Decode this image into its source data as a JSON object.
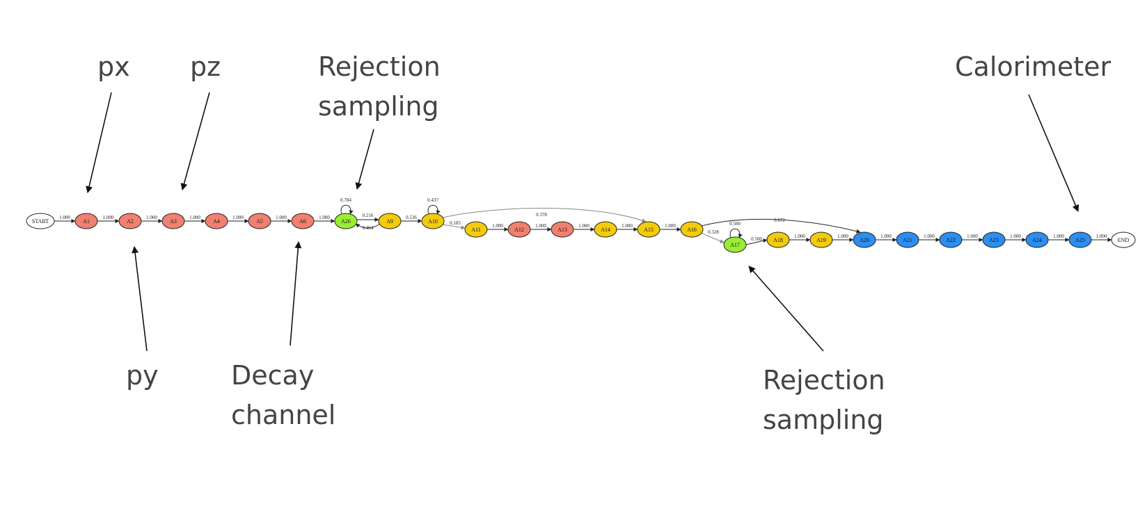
{
  "annotations": {
    "px": "px",
    "pz": "pz",
    "py": "py",
    "rejection_1": "Rejection\nsampling",
    "decay_channel": "Decay\nchannel",
    "calorimeter": "Calorimeter",
    "rejection_2": "Rejection\nsampling"
  },
  "colors": {
    "red": "#f08070",
    "yellow": "#f2cc0c",
    "green": "#99ee33",
    "blue": "#2b8ef0",
    "white": "#ffffff",
    "edge": "#222222",
    "edge_gray": "#888888",
    "label": "#444444"
  },
  "graph": {
    "nodes": [
      {
        "id": "START",
        "label": "START",
        "color": "white"
      },
      {
        "id": "A1",
        "label": "A1",
        "color": "red"
      },
      {
        "id": "A2",
        "label": "A2",
        "color": "red"
      },
      {
        "id": "A3",
        "label": "A3",
        "color": "red"
      },
      {
        "id": "A4",
        "label": "A4",
        "color": "red"
      },
      {
        "id": "A5",
        "label": "A5",
        "color": "red"
      },
      {
        "id": "A6",
        "label": "A6",
        "color": "red"
      },
      {
        "id": "A26",
        "label": "A26",
        "color": "green"
      },
      {
        "id": "A9",
        "label": "A9",
        "color": "yellow"
      },
      {
        "id": "A10",
        "label": "A10",
        "color": "yellow"
      },
      {
        "id": "A11",
        "label": "A11",
        "color": "yellow"
      },
      {
        "id": "A12",
        "label": "A12",
        "color": "red"
      },
      {
        "id": "A13",
        "label": "A13",
        "color": "red"
      },
      {
        "id": "A14",
        "label": "A14",
        "color": "yellow"
      },
      {
        "id": "A15",
        "label": "A15",
        "color": "yellow"
      },
      {
        "id": "A16",
        "label": "A16",
        "color": "yellow"
      },
      {
        "id": "A17",
        "label": "A17",
        "color": "green"
      },
      {
        "id": "A18",
        "label": "A18",
        "color": "yellow"
      },
      {
        "id": "A19",
        "label": "A19",
        "color": "yellow"
      },
      {
        "id": "A20",
        "label": "A20",
        "color": "blue"
      },
      {
        "id": "A21",
        "label": "A21",
        "color": "blue"
      },
      {
        "id": "A22",
        "label": "A22",
        "color": "blue"
      },
      {
        "id": "A23",
        "label": "A23",
        "color": "blue"
      },
      {
        "id": "A24",
        "label": "A24",
        "color": "blue"
      },
      {
        "id": "A25",
        "label": "A25",
        "color": "blue"
      },
      {
        "id": "END",
        "label": "END",
        "color": "white"
      }
    ],
    "edges": [
      {
        "from": "START",
        "to": "A1",
        "label": "1.000"
      },
      {
        "from": "A1",
        "to": "A2",
        "label": "1.000"
      },
      {
        "from": "A2",
        "to": "A3",
        "label": "1.000"
      },
      {
        "from": "A3",
        "to": "A4",
        "label": "1.000"
      },
      {
        "from": "A4",
        "to": "A5",
        "label": "1.000"
      },
      {
        "from": "A5",
        "to": "A6",
        "label": "1.000"
      },
      {
        "from": "A6",
        "to": "A26",
        "label": "1.000"
      },
      {
        "from": "A26",
        "to": "A26",
        "label": "0.784"
      },
      {
        "from": "A26",
        "to": "A9",
        "label": "0.216"
      },
      {
        "from": "A9",
        "to": "A26",
        "label": "0.464"
      },
      {
        "from": "A9",
        "to": "A10",
        "label": "0.536"
      },
      {
        "from": "A10",
        "to": "A10",
        "label": "0.437"
      },
      {
        "from": "A10",
        "to": "A11",
        "label": "0.185"
      },
      {
        "from": "A10",
        "to": "A15",
        "label": "0.378"
      },
      {
        "from": "A11",
        "to": "A12",
        "label": "1.000"
      },
      {
        "from": "A12",
        "to": "A13",
        "label": "1.000"
      },
      {
        "from": "A13",
        "to": "A14",
        "label": "1.000"
      },
      {
        "from": "A14",
        "to": "A15",
        "label": "1.000"
      },
      {
        "from": "A15",
        "to": "A16",
        "label": "1.000"
      },
      {
        "from": "A16",
        "to": "A17",
        "label": "0.328"
      },
      {
        "from": "A16",
        "to": "A20",
        "label": "0.672"
      },
      {
        "from": "A17",
        "to": "A17",
        "label": "0.500"
      },
      {
        "from": "A17",
        "to": "A18",
        "label": "0.500"
      },
      {
        "from": "A18",
        "to": "A19",
        "label": "1.000"
      },
      {
        "from": "A19",
        "to": "A20",
        "label": "1.000"
      },
      {
        "from": "A20",
        "to": "A21",
        "label": "1.000"
      },
      {
        "from": "A21",
        "to": "A22",
        "label": "1.000"
      },
      {
        "from": "A22",
        "to": "A23",
        "label": "1.000"
      },
      {
        "from": "A23",
        "to": "A24",
        "label": "1.000"
      },
      {
        "from": "A24",
        "to": "A25",
        "label": "1.000"
      },
      {
        "from": "A25",
        "to": "END",
        "label": "1.000"
      }
    ]
  }
}
